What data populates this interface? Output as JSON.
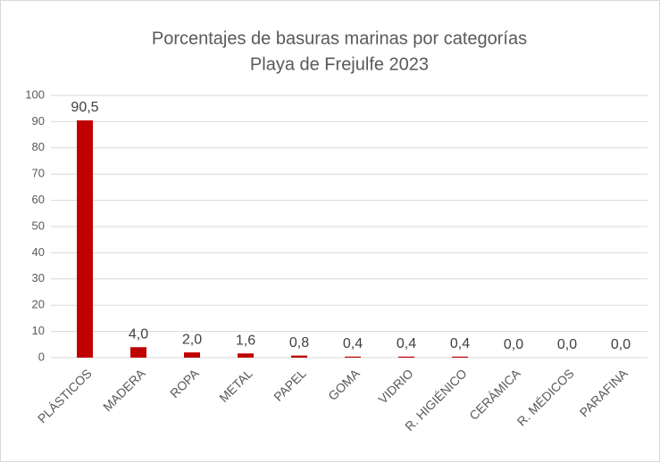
{
  "chart_data": {
    "type": "bar",
    "title": "Porcentajes de basuras marinas por categorías",
    "subtitle": "Playa de Frejulfe 2023",
    "categories": [
      "PLÁSTICOS",
      "MADERA",
      "ROPA",
      "METAL",
      "PAPEL",
      "GOMA",
      "VIDRIO",
      "R. HIGIÉNICO",
      "CERÁMICA",
      "R. MÉDICOS",
      "PARAFINA"
    ],
    "values": [
      90.5,
      4.0,
      2.0,
      1.6,
      0.8,
      0.4,
      0.4,
      0.4,
      0.0,
      0.0,
      0.0
    ],
    "value_labels": [
      "90,5",
      "4,0",
      "2,0",
      "1,6",
      "0,8",
      "0,4",
      "0,4",
      "0,4",
      "0,0",
      "0,0",
      "0,0"
    ],
    "color": "#c00000",
    "ylim": [
      0,
      100
    ],
    "yticks": [
      0,
      10,
      20,
      30,
      40,
      50,
      60,
      70,
      80,
      90,
      100
    ],
    "grid": true
  }
}
